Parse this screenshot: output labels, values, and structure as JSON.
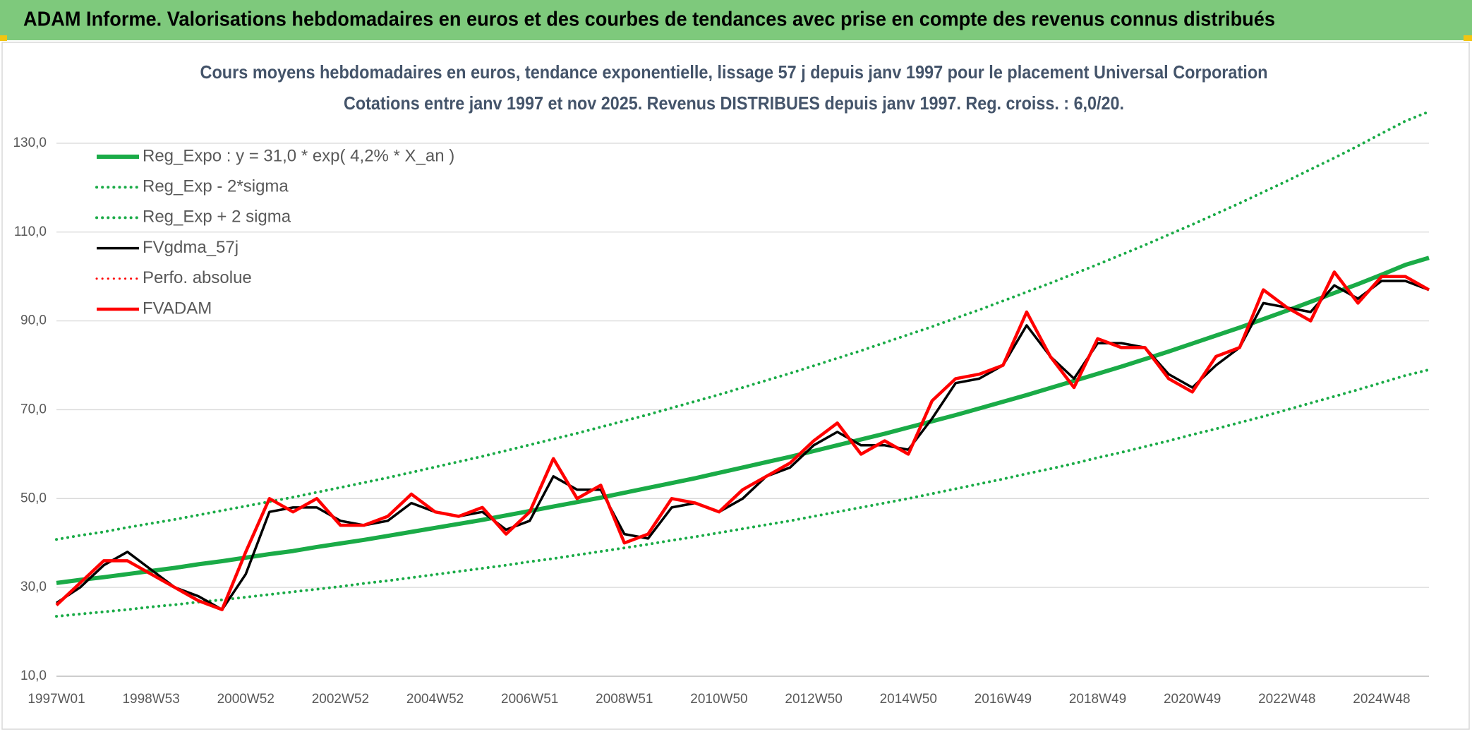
{
  "header": {
    "title": "ADAM Informe. Valorisations hebdomadaires en euros et des courbes de tendances avec prise en compte des revenus connus distribués"
  },
  "chart_data": {
    "type": "line",
    "title": "Cours moyens hebdomadaires en euros, tendance exponentielle, lissage 57 j depuis janv 1997 pour le placement Universal Corporation",
    "subtitle": "Cotations entre janv 1997 et nov 2025. Revenus DISTRIBUES depuis janv 1997. Reg. croiss. : 6,0/20.",
    "categories": [
      "1997W01",
      null,
      null,
      null,
      "1998W53",
      null,
      null,
      null,
      "2000W52",
      null,
      null,
      null,
      "2002W52",
      null,
      null,
      null,
      "2004W52",
      null,
      null,
      null,
      "2006W51",
      null,
      null,
      null,
      "2008W51",
      null,
      null,
      null,
      "2010W50",
      null,
      null,
      null,
      "2012W50",
      null,
      null,
      null,
      "2014W50",
      null,
      null,
      null,
      "2016W49",
      null,
      null,
      null,
      "2018W49",
      null,
      null,
      null,
      "2020W49",
      null,
      null,
      null,
      "2022W48",
      null,
      null,
      null,
      "2024W48",
      null,
      null
    ],
    "ylim": [
      10,
      140
    ],
    "yticks": [
      {
        "value": 10,
        "label": "10,0"
      },
      {
        "value": 30,
        "label": "30,0"
      },
      {
        "value": 50,
        "label": "50,0"
      },
      {
        "value": 70,
        "label": "70,0"
      },
      {
        "value": 90,
        "label": "90,0"
      },
      {
        "value": 110,
        "label": "110,0"
      },
      {
        "value": 130,
        "label": "130,0"
      }
    ],
    "grid": true,
    "legend": "upper left",
    "series": [
      {
        "name": "Reg_Expo : y = 31,0 * exp( 4,2% *  X_an )",
        "color": "#1aab47",
        "line_style": "solid",
        "values": [
          31.0,
          31.7,
          32.3,
          33.0,
          33.7,
          34.4,
          35.2,
          35.9,
          36.7,
          37.5,
          38.2,
          39.1,
          39.9,
          40.7,
          41.6,
          42.5,
          43.4,
          44.3,
          45.2,
          46.2,
          47.2,
          48.2,
          49.2,
          50.2,
          51.3,
          52.4,
          53.5,
          54.6,
          55.8,
          57.0,
          58.2,
          59.4,
          60.7,
          62.0,
          63.3,
          64.6,
          66.0,
          67.4,
          68.8,
          70.3,
          71.8,
          73.3,
          74.9,
          76.5,
          78.1,
          79.7,
          81.4,
          83.1,
          84.9,
          86.7,
          88.5,
          90.4,
          92.3,
          94.3,
          96.3,
          98.3,
          100.4,
          102.6,
          104.2
        ]
      },
      {
        "name": "Reg_Exp - 2*sigma",
        "color": "#1aab47",
        "line_style": "dotted",
        "values": [
          23.5,
          24.0,
          24.5,
          25.0,
          25.6,
          26.1,
          26.7,
          27.2,
          27.8,
          28.4,
          29.0,
          29.6,
          30.2,
          30.9,
          31.5,
          32.2,
          32.9,
          33.6,
          34.3,
          35.0,
          35.8,
          36.5,
          37.3,
          38.1,
          38.9,
          39.7,
          40.6,
          41.4,
          42.3,
          43.2,
          44.1,
          45.0,
          46.0,
          47.0,
          48.0,
          49.0,
          50.0,
          51.1,
          52.2,
          53.3,
          54.4,
          55.6,
          56.7,
          57.9,
          59.2,
          60.4,
          61.7,
          63.0,
          64.4,
          65.7,
          67.1,
          68.5,
          70.0,
          71.5,
          73.0,
          74.5,
          76.1,
          77.7,
          79.0
        ]
      },
      {
        "name": "Reg_Exp + 2 sigma",
        "color": "#1aab47",
        "line_style": "dotted",
        "values": [
          40.8,
          41.7,
          42.5,
          43.5,
          44.4,
          45.3,
          46.3,
          47.3,
          48.3,
          49.3,
          50.3,
          51.4,
          52.5,
          53.6,
          54.7,
          55.9,
          57.1,
          58.3,
          59.5,
          60.8,
          62.1,
          63.4,
          64.7,
          66.1,
          67.5,
          68.9,
          70.4,
          71.9,
          73.4,
          75.0,
          76.6,
          78.2,
          79.9,
          81.6,
          83.3,
          85.1,
          86.9,
          88.7,
          90.6,
          92.5,
          94.5,
          96.5,
          98.5,
          100.6,
          102.7,
          104.9,
          107.1,
          109.4,
          111.7,
          114.1,
          116.5,
          119.0,
          121.5,
          124.1,
          126.7,
          129.4,
          132.2,
          135.0,
          137.1
        ]
      },
      {
        "name": "FVgdma_57j",
        "color": "#000000",
        "line_style": "solid",
        "values": [
          26.5,
          30,
          35,
          38,
          34,
          30,
          28,
          25,
          33,
          47,
          48,
          48,
          45,
          44,
          45,
          49,
          47,
          46,
          47,
          43,
          45,
          55,
          52,
          52,
          42,
          41,
          48,
          49,
          47,
          50,
          55,
          57,
          62,
          65,
          62,
          62,
          61,
          68,
          76,
          77,
          80,
          89,
          82,
          77,
          85,
          85,
          84,
          78,
          75,
          80,
          84,
          94,
          93,
          92,
          98,
          95,
          99,
          99,
          97
        ]
      },
      {
        "name": "Perfo. absolue",
        "color": "#ff0000",
        "line_style": "dotted",
        "values": [
          null,
          null,
          null,
          null,
          null,
          null,
          null,
          null,
          null,
          null,
          null,
          null,
          null,
          null,
          null,
          null,
          null,
          null,
          null,
          null,
          null,
          null,
          null,
          null,
          null,
          null,
          null,
          null,
          null,
          null,
          null,
          null,
          null,
          null,
          null,
          null,
          null,
          null,
          null,
          null,
          null,
          null,
          null,
          null,
          null,
          null,
          null,
          null,
          null,
          null,
          null,
          null,
          null,
          null,
          null,
          null,
          null,
          null,
          null
        ]
      },
      {
        "name": "FVADAM",
        "color": "#ff0000",
        "line_style": "solid",
        "values": [
          26,
          31,
          36,
          36,
          33,
          30,
          27,
          25,
          38,
          50,
          47,
          50,
          44,
          44,
          46,
          51,
          47,
          46,
          48,
          42,
          47,
          59,
          50,
          53,
          40,
          42,
          50,
          49,
          47,
          52,
          55,
          58,
          63,
          67,
          60,
          63,
          60,
          72,
          77,
          78,
          80,
          92,
          82,
          75,
          86,
          84,
          84,
          77,
          74,
          82,
          84,
          97,
          93,
          90,
          101,
          94,
          100,
          100,
          97
        ]
      }
    ]
  }
}
